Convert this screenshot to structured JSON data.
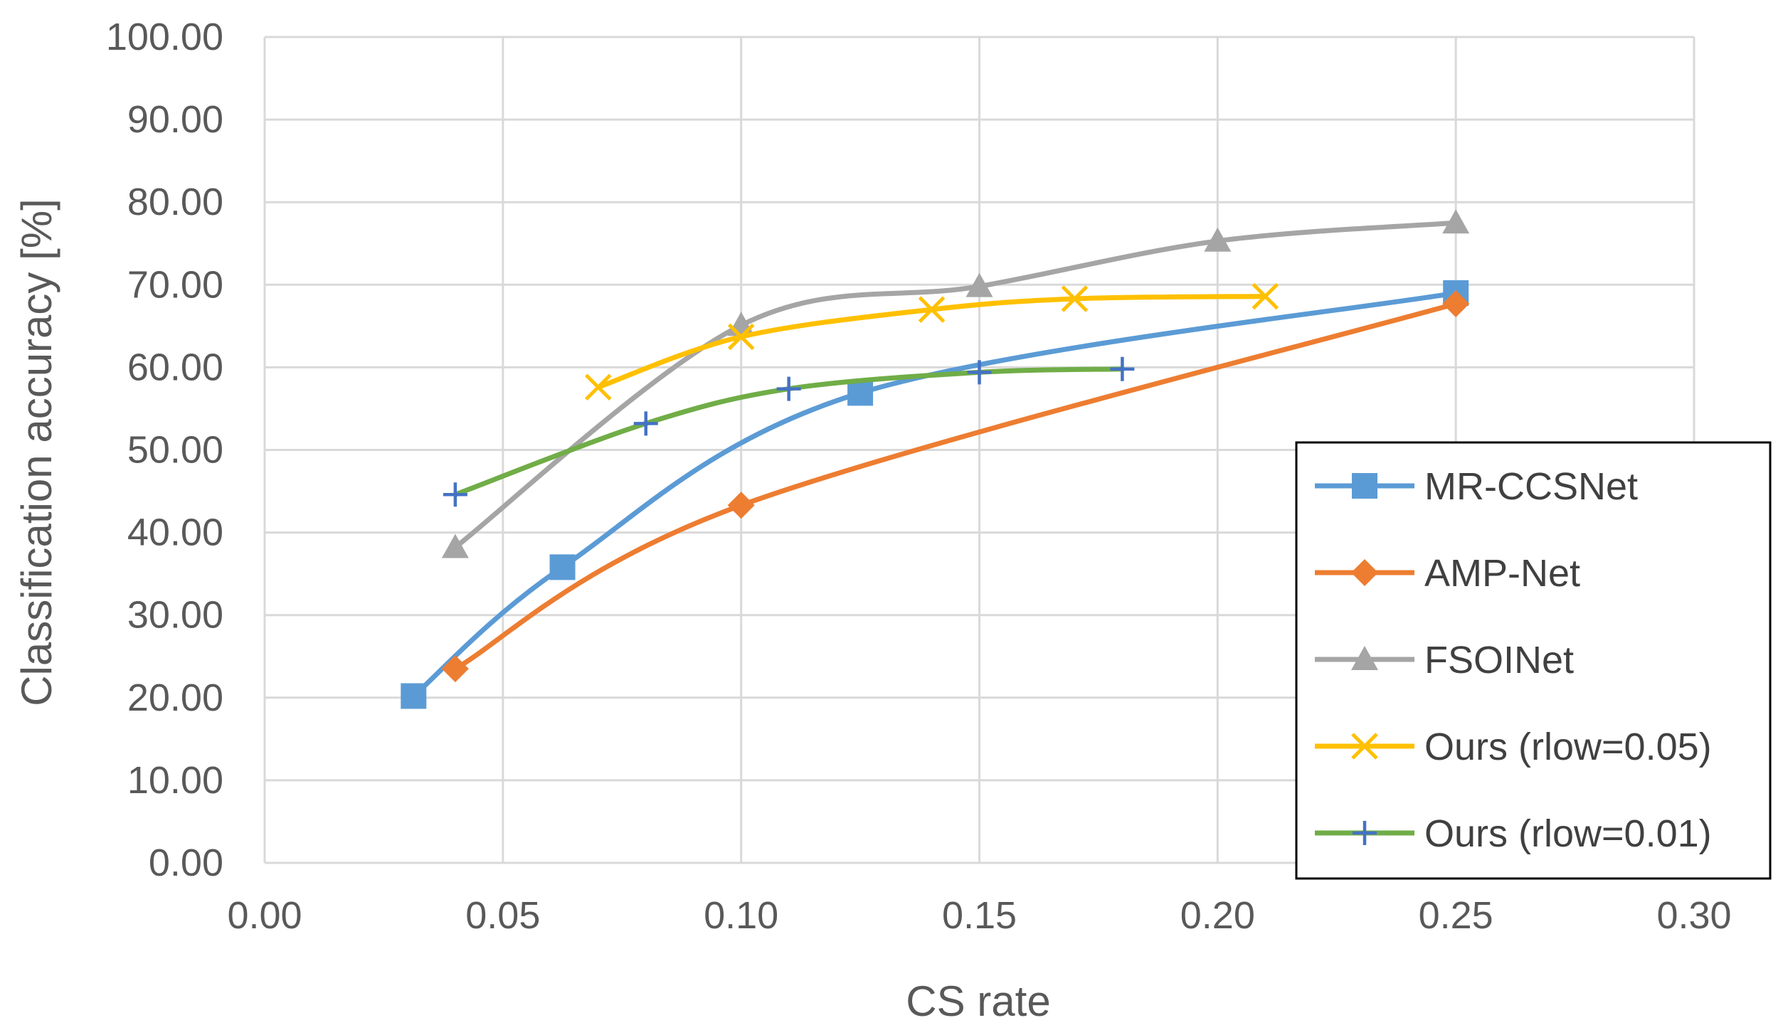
{
  "chart_data": {
    "type": "line",
    "title": "",
    "xlabel": "CS rate",
    "ylabel": "Classification accuracy [%]",
    "xlim": [
      0,
      0.3
    ],
    "ylim": [
      0,
      100
    ],
    "xticks": [
      0,
      0.05,
      0.1,
      0.15,
      0.2,
      0.25,
      0.3
    ],
    "yticks": [
      0,
      10,
      20,
      30,
      40,
      50,
      60,
      70,
      80,
      90,
      100
    ],
    "xtick_labels": [
      "0.00",
      "0.05",
      "0.10",
      "0.15",
      "0.20",
      "0.25",
      "0.30"
    ],
    "ytick_labels": [
      "0.00",
      "10.00",
      "20.00",
      "30.00",
      "40.00",
      "50.00",
      "60.00",
      "70.00",
      "80.00",
      "90.00",
      "100.00"
    ],
    "grid": true,
    "legend_position": "bottom-right",
    "series": [
      {
        "name": "MR-CCSNet",
        "color": "#5B9BD5",
        "marker": "square",
        "x": [
          0.03125,
          0.0625,
          0.125,
          0.25
        ],
        "y": [
          20.2,
          35.8,
          56.9,
          69.0
        ]
      },
      {
        "name": "AMP-Net",
        "color": "#ED7D31",
        "marker": "diamond",
        "x": [
          0.04,
          0.1,
          0.25
        ],
        "y": [
          23.5,
          43.3,
          67.7
        ]
      },
      {
        "name": "FSOINet",
        "color": "#A5A5A5",
        "marker": "triangle",
        "x": [
          0.04,
          0.1,
          0.15,
          0.2,
          0.25
        ],
        "y": [
          38.2,
          65.1,
          69.8,
          75.3,
          77.5
        ]
      },
      {
        "name": "Ours (rlow=0.05)",
        "color": "#FFC000",
        "marker": "x",
        "x": [
          0.07,
          0.1,
          0.14,
          0.17,
          0.21
        ],
        "y": [
          57.6,
          63.7,
          67.0,
          68.3,
          68.6
        ]
      },
      {
        "name": "Ours (rlow=0.01)",
        "color": "#70AD47",
        "marker": "plus",
        "marker_color": "#4472C4",
        "x": [
          0.04,
          0.08,
          0.11,
          0.15,
          0.18
        ],
        "y": [
          44.6,
          53.2,
          57.4,
          59.4,
          59.8
        ]
      }
    ]
  }
}
